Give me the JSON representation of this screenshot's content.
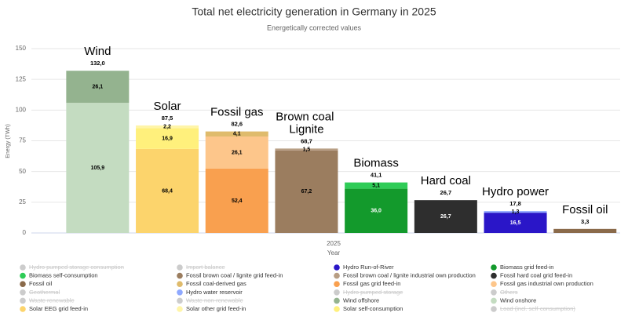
{
  "chart_data": {
    "type": "bar",
    "stacked": true,
    "title": "Total net electricity generation in Germany in 2025",
    "subtitle": "Energetically corrected values",
    "ylabel": "Energy (TWh)",
    "xlabel": "Year",
    "x_categories": [
      "2025"
    ],
    "categories": [
      "Wind",
      "Solar",
      "Fossil gas",
      "Brown coal\nLignite",
      "Biomass",
      "Hard coal",
      "Hydro power",
      "Fossil oil"
    ],
    "totals": [
      132.0,
      87.5,
      82.6,
      68.7,
      41.1,
      26.7,
      17.8,
      3.3
    ],
    "total_labels": [
      "132,0",
      "87,5",
      "82,6",
      "68,7",
      "41,1",
      "26,7",
      "17,8",
      "3,3"
    ],
    "ylim": [
      0,
      150
    ],
    "yticks": [
      0,
      25,
      50,
      75,
      100,
      125,
      150
    ],
    "grid": true,
    "series": [
      {
        "name": "Hydro pumped storage consumption",
        "color": "#9ec5e8",
        "hidden": true,
        "values": [
          null,
          null,
          null,
          null,
          null,
          null,
          null,
          null
        ],
        "value_labels": [
          null,
          null,
          null,
          null,
          null,
          null,
          null,
          null
        ]
      },
      {
        "name": "Import balance",
        "color": "#999999",
        "hidden": true,
        "values": [
          null,
          null,
          null,
          null,
          null,
          null,
          null,
          null
        ],
        "value_labels": [
          null,
          null,
          null,
          null,
          null,
          null,
          null,
          null
        ]
      },
      {
        "name": "Hydro Run-of-River",
        "color": "#2a16c8",
        "values": [
          null,
          null,
          null,
          null,
          null,
          null,
          16.5,
          null
        ],
        "value_labels": [
          null,
          null,
          null,
          null,
          null,
          null,
          "16,5",
          null
        ]
      },
      {
        "name": "Biomass grid feed-in",
        "color": "#139a2c",
        "values": [
          null,
          null,
          null,
          null,
          36.0,
          null,
          null,
          null
        ],
        "value_labels": [
          null,
          null,
          null,
          null,
          "36,0",
          null,
          null,
          null
        ]
      },
      {
        "name": "Biomass self-consumption",
        "color": "#2fcc57",
        "values": [
          null,
          null,
          null,
          null,
          5.1,
          null,
          null,
          null
        ],
        "value_labels": [
          null,
          null,
          null,
          null,
          "5,1",
          null,
          null,
          null
        ]
      },
      {
        "name": "Fossil brown coal / lignite grid feed-in",
        "color": "#9b7d5f",
        "values": [
          null,
          null,
          null,
          67.2,
          null,
          null,
          null,
          null
        ],
        "value_labels": [
          null,
          null,
          null,
          "67,2",
          null,
          null,
          null,
          null
        ]
      },
      {
        "name": "Fossil brown coal / lignite industrial own production",
        "color": "#b89e84",
        "values": [
          null,
          null,
          null,
          1.5,
          null,
          null,
          null,
          null
        ],
        "value_labels": [
          null,
          null,
          null,
          "1,5",
          null,
          null,
          null,
          null
        ]
      },
      {
        "name": "Fossil hard coal grid feed-in",
        "color": "#2e2e2e",
        "values": [
          null,
          null,
          null,
          null,
          null,
          26.7,
          null,
          null
        ],
        "value_labels": [
          null,
          null,
          null,
          null,
          null,
          "26,7",
          null,
          null
        ]
      },
      {
        "name": "Fossil oil",
        "color": "#8a6a4a",
        "values": [
          null,
          null,
          null,
          null,
          null,
          null,
          null,
          3.3
        ],
        "value_labels": [
          null,
          null,
          null,
          null,
          null,
          null,
          null,
          null
        ]
      },
      {
        "name": "Fossil coal-derived gas",
        "color": "#dfbb6c",
        "values": [
          null,
          null,
          4.1,
          null,
          null,
          null,
          null,
          null
        ],
        "value_labels": [
          null,
          null,
          "4,1",
          null,
          null,
          null,
          null,
          null
        ]
      },
      {
        "name": "Fossil gas grid feed-in",
        "color": "#f9a04f",
        "values": [
          null,
          null,
          52.4,
          null,
          null,
          null,
          null,
          null
        ],
        "value_labels": [
          null,
          null,
          "52,4",
          null,
          null,
          null,
          null,
          null
        ]
      },
      {
        "name": "Fossil gas industrial own production",
        "color": "#fdc68b",
        "values": [
          null,
          null,
          26.1,
          null,
          null,
          null,
          null,
          null
        ],
        "value_labels": [
          null,
          null,
          "26,1",
          null,
          null,
          null,
          null,
          null
        ]
      },
      {
        "name": "Geothermal",
        "color": "#c0504d",
        "hidden": true,
        "values": [
          null,
          null,
          null,
          null,
          null,
          null,
          null,
          null
        ],
        "value_labels": [
          null,
          null,
          null,
          null,
          null,
          null,
          null,
          null
        ]
      },
      {
        "name": "Hydro water reservoir",
        "color": "#8fa9ff",
        "values": [
          null,
          null,
          null,
          null,
          null,
          null,
          1.3,
          null
        ],
        "value_labels": [
          null,
          null,
          null,
          null,
          null,
          null,
          "1,3",
          null
        ]
      },
      {
        "name": "Hydro pumped storage",
        "color": "#5b8fd8",
        "hidden": true,
        "values": [
          null,
          null,
          null,
          null,
          null,
          null,
          null,
          null
        ],
        "value_labels": [
          null,
          null,
          null,
          null,
          null,
          null,
          null,
          null
        ]
      },
      {
        "name": "Others",
        "color": "#aaaaaa",
        "hidden": true,
        "values": [
          null,
          null,
          null,
          null,
          null,
          null,
          null,
          null
        ],
        "value_labels": [
          null,
          null,
          null,
          null,
          null,
          null,
          null,
          null
        ]
      },
      {
        "name": "Waste renewable",
        "color": "#7f9f3f",
        "hidden": true,
        "values": [
          null,
          null,
          null,
          null,
          null,
          null,
          null,
          null
        ],
        "value_labels": [
          null,
          null,
          null,
          null,
          null,
          null,
          null,
          null
        ]
      },
      {
        "name": "Waste non-renewable",
        "color": "#6f6f6f",
        "hidden": true,
        "values": [
          null,
          null,
          null,
          null,
          null,
          null,
          null,
          null
        ],
        "value_labels": [
          null,
          null,
          null,
          null,
          null,
          null,
          null,
          null
        ]
      },
      {
        "name": "Wind offshore",
        "color": "#94b38f",
        "values": [
          26.1,
          null,
          null,
          null,
          null,
          null,
          null,
          null
        ],
        "value_labels": [
          "26,1",
          null,
          null,
          null,
          null,
          null,
          null,
          null
        ]
      },
      {
        "name": "Wind onshore",
        "color": "#c4dcc1",
        "values": [
          105.9,
          null,
          null,
          null,
          null,
          null,
          null,
          null
        ],
        "value_labels": [
          "105,9",
          null,
          null,
          null,
          null,
          null,
          null,
          null
        ]
      },
      {
        "name": "Solar EEG grid feed-in",
        "color": "#fcd46c",
        "values": [
          null,
          68.4,
          null,
          null,
          null,
          null,
          null,
          null
        ],
        "value_labels": [
          null,
          "68,4",
          null,
          null,
          null,
          null,
          null,
          null
        ]
      },
      {
        "name": "Solar other grid feed-in",
        "color": "#fff5a8",
        "values": [
          null,
          2.2,
          null,
          null,
          null,
          null,
          null,
          null
        ],
        "value_labels": [
          null,
          "2,2",
          null,
          null,
          null,
          null,
          null,
          null
        ]
      },
      {
        "name": "Solar self-consumption",
        "color": "#fff07c",
        "values": [
          null,
          16.9,
          null,
          null,
          null,
          null,
          null,
          null
        ],
        "value_labels": [
          null,
          "16,9",
          null,
          null,
          null,
          null,
          null,
          null
        ]
      },
      {
        "name": "Load (incl. self-consumption)",
        "color": "#444444",
        "hidden": true,
        "values": [
          null,
          null,
          null,
          null,
          null,
          null,
          null,
          null
        ],
        "value_labels": [
          null,
          null,
          null,
          null,
          null,
          null,
          null,
          null
        ]
      }
    ]
  }
}
